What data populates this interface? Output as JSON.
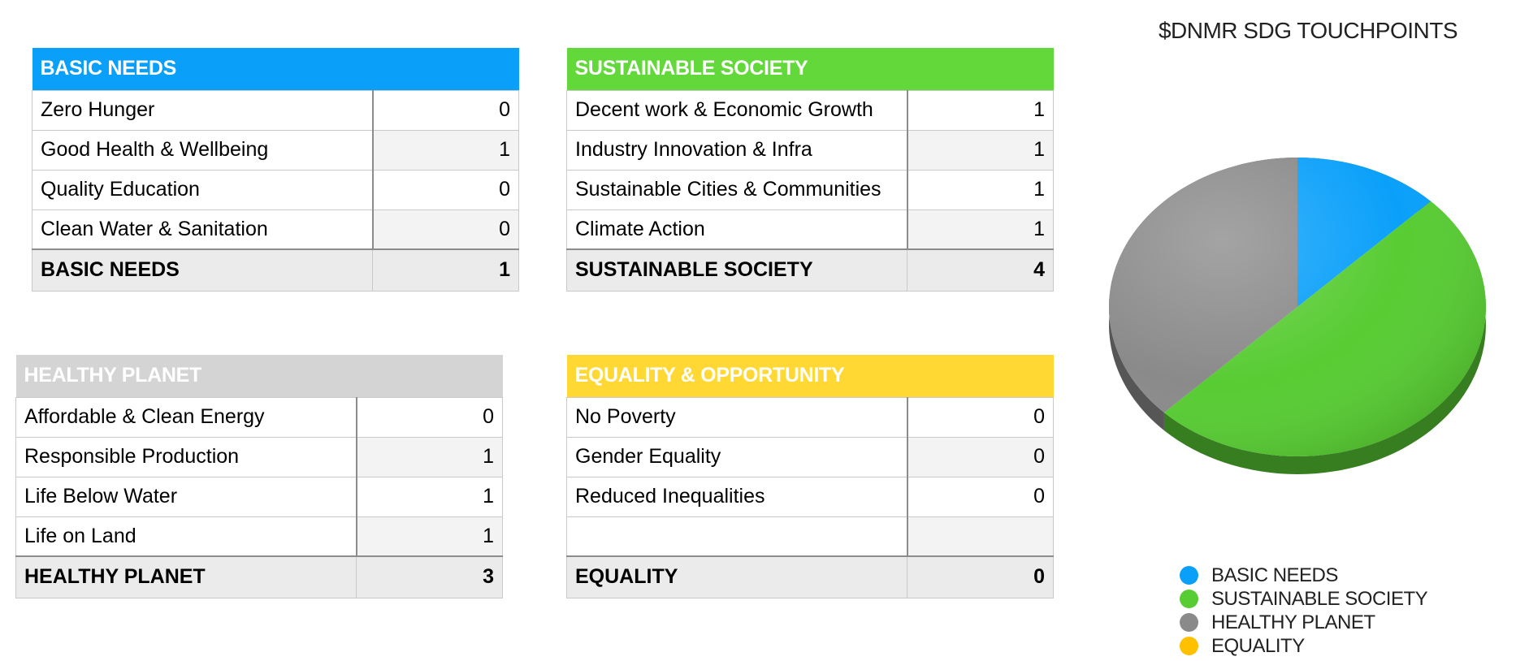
{
  "tables": [
    {
      "id": "basic-needs",
      "title": "BASIC NEEDS",
      "color": "#0aa0fa",
      "rows": [
        {
          "label": "Zero Hunger",
          "value": "0"
        },
        {
          "label": "Good Health & Wellbeing",
          "value": "1"
        },
        {
          "label": "Quality Education",
          "value": "0"
        },
        {
          "label": "Clean Water & Sanitation",
          "value": "0"
        }
      ],
      "total_label": "BASIC NEEDS",
      "total_value": "1"
    },
    {
      "id": "sustainable-society",
      "title": "SUSTAINABLE SOCIETY",
      "color": "#62d83a",
      "rows": [
        {
          "label": "Decent work & Economic Growth",
          "value": "1"
        },
        {
          "label": "Industry Innovation & Infra",
          "value": "1"
        },
        {
          "label": "Sustainable Cities & Communities",
          "value": "1"
        },
        {
          "label": "Climate Action",
          "value": "1"
        }
      ],
      "total_label": "SUSTAINABLE SOCIETY",
      "total_value": "4"
    },
    {
      "id": "healthy-planet",
      "title": "HEALTHY PLANET",
      "color": "#d4d4d4",
      "rows": [
        {
          "label": "Affordable & Clean Energy",
          "value": "0"
        },
        {
          "label": "Responsible Production",
          "value": "1"
        },
        {
          "label": "Life Below Water",
          "value": "1"
        },
        {
          "label": "Life on Land",
          "value": "1"
        }
      ],
      "total_label": "HEALTHY PLANET",
      "total_value": "3"
    },
    {
      "id": "equality-opportunity",
      "title": "EQUALITY & OPPORTUNITY",
      "color": "#ffd833",
      "rows": [
        {
          "label": "No Poverty",
          "value": "0"
        },
        {
          "label": "Gender Equality",
          "value": "0"
        },
        {
          "label": "Reduced Inequalities",
          "value": "0"
        },
        {
          "label": "",
          "value": ""
        }
      ],
      "total_label": "EQUALITY",
      "total_value": "0"
    }
  ],
  "chart_data": {
    "type": "pie",
    "title": "$DNMR SDG TOUCHPOINTS",
    "categories": [
      "BASIC NEEDS",
      "SUSTAINABLE SOCIETY",
      "HEALTHY PLANET",
      "EQUALITY"
    ],
    "values": [
      1,
      4,
      3,
      0
    ],
    "colors": [
      "#0aa0fa",
      "#58cc33",
      "#8a8a8a",
      "#ffc000"
    ],
    "legend_position": "bottom",
    "style": "3d"
  }
}
